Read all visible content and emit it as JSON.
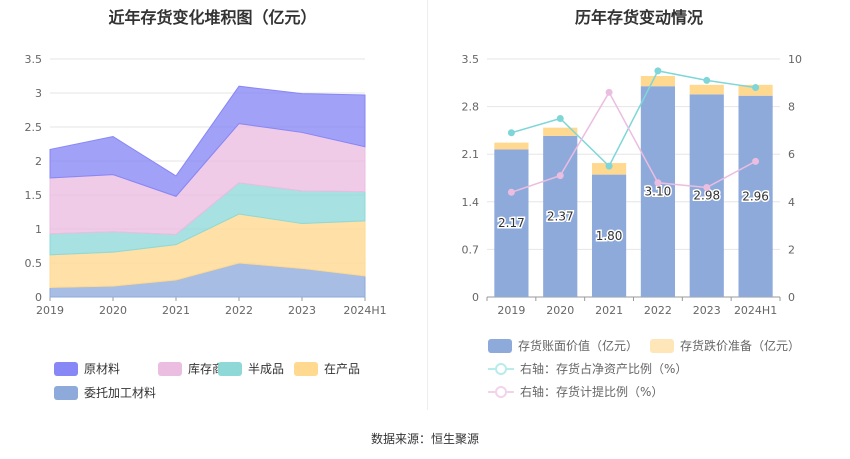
{
  "source": "数据来源：恒生聚源",
  "chart_data": [
    {
      "type": "area",
      "stacked": true,
      "title": "近年存货变化堆积图（亿元）",
      "categories": [
        "2019",
        "2020",
        "2021",
        "2022",
        "2023",
        "2024H1"
      ],
      "ylim": [
        0,
        3.5
      ],
      "yticks": [
        "0",
        "0.5",
        "1",
        "1.5",
        "2",
        "2.5",
        "3",
        "3.5"
      ],
      "series": [
        {
          "name": "委托加工材料",
          "color": "#8eaadb",
          "values": [
            0.14,
            0.16,
            0.25,
            0.5,
            0.42,
            0.31
          ]
        },
        {
          "name": "在产品",
          "color": "#ffd98f",
          "values": [
            0.48,
            0.5,
            0.52,
            0.72,
            0.66,
            0.81
          ]
        },
        {
          "name": "半成品",
          "color": "#8ed9d8",
          "values": [
            0.31,
            0.3,
            0.15,
            0.46,
            0.48,
            0.43
          ]
        },
        {
          "name": "库存商品",
          "color": "#ebbde0",
          "values": [
            0.82,
            0.84,
            0.56,
            0.87,
            0.86,
            0.66
          ]
        },
        {
          "name": "原材料",
          "color": "#8787f5",
          "values": [
            0.42,
            0.56,
            0.3,
            0.55,
            0.57,
            0.76
          ]
        }
      ],
      "legend": [
        "原材料",
        "库存商品",
        "半成品",
        "在产品",
        "委托加工材料"
      ]
    },
    {
      "type": "bar+line",
      "stacked": true,
      "title": "历年存货变动情况",
      "categories": [
        "2019",
        "2020",
        "2021",
        "2022",
        "2023",
        "2024H1"
      ],
      "ylim": [
        0,
        3.5
      ],
      "yticks": [
        "0",
        "0.7",
        "1.4",
        "2.1",
        "2.8",
        "3.5"
      ],
      "y2lim": [
        0,
        10
      ],
      "y2ticks": [
        "0",
        "2",
        "4",
        "6",
        "8",
        "10"
      ],
      "bar_series": [
        {
          "name": "存货账面价值（亿元）",
          "color": "#8eaadb",
          "values": [
            2.17,
            2.37,
            1.8,
            3.1,
            2.98,
            2.96
          ],
          "labels": [
            "2.17",
            "2.37",
            "1.80",
            "3.10",
            "2.98",
            "2.96"
          ]
        },
        {
          "name": "存货跌价准备（亿元）",
          "color": "#ffd98f",
          "values": [
            0.1,
            0.12,
            0.17,
            0.15,
            0.14,
            0.16
          ]
        }
      ],
      "line_series": [
        {
          "name": "右轴：存货占净资产比例（%）",
          "color": "#7fd6d8",
          "values": [
            6.9,
            7.5,
            5.5,
            9.5,
            9.1,
            8.8
          ]
        },
        {
          "name": "右轴：存货计提比例（%）",
          "color": "#ebbde0",
          "values": [
            4.4,
            5.1,
            8.6,
            4.8,
            4.6,
            5.7
          ]
        }
      ]
    }
  ]
}
